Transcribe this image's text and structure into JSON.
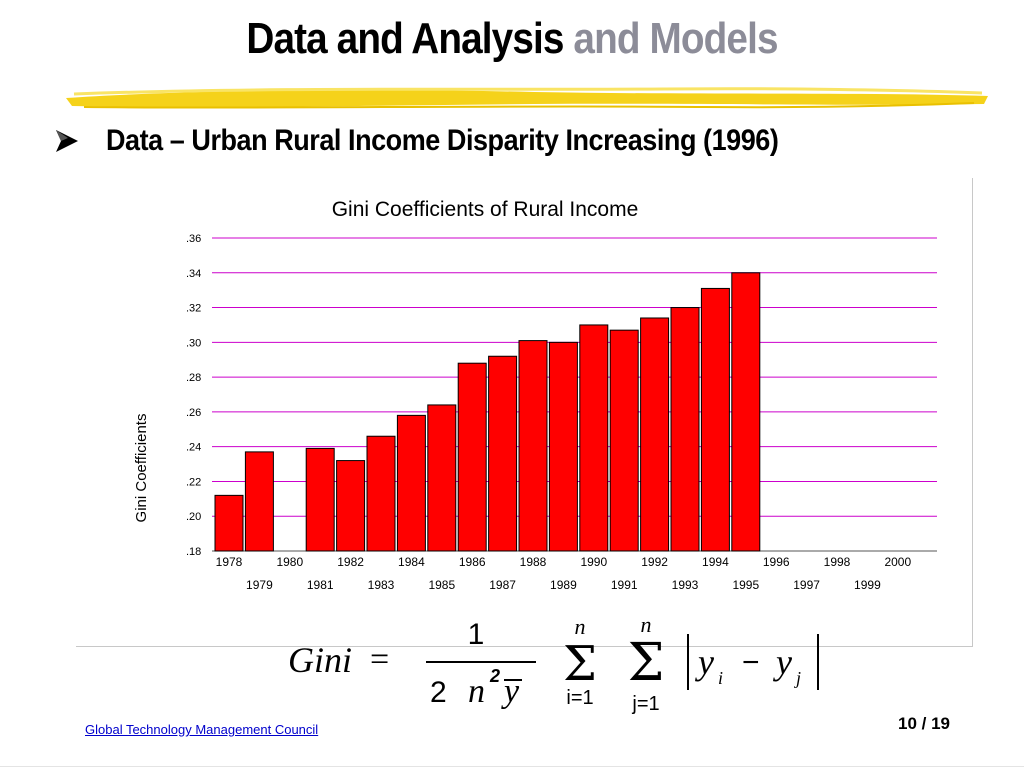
{
  "slide": {
    "title_main": "Data and Analysis",
    "title_accent": "and Models",
    "bullet_text": "Data – Urban Rural Income Disparity Increasing (1996)",
    "bullet_icon": "arrowhead-bullet-icon",
    "footer_link": "Global Technology Management Council",
    "page_number": "10 / 19"
  },
  "colors": {
    "title_main": "#000000",
    "title_accent": "#8c8c98",
    "highlight_stroke": "#f5d21a",
    "bar_fill": "#ff0000",
    "bar_stroke": "#000000",
    "gridline": "#cc00cc",
    "link": "#0000cc"
  },
  "chart_data": {
    "type": "bar",
    "title": "Gini Coefficients of Rural Income",
    "xlabel": "",
    "ylabel": "Gini Coefficients",
    "ylim": [
      0.18,
      0.36
    ],
    "yticks": [
      ".36",
      ".34",
      ".32",
      ".30",
      ".28",
      ".26",
      ".24",
      ".22",
      ".20",
      ".18"
    ],
    "ytick_values": [
      0.36,
      0.34,
      0.32,
      0.3,
      0.28,
      0.26,
      0.24,
      0.22,
      0.2,
      0.18
    ],
    "grid": true,
    "categories": [
      "1978",
      "1979",
      "1980",
      "1981",
      "1982",
      "1983",
      "1984",
      "1985",
      "1986",
      "1987",
      "1988",
      "1989",
      "1990",
      "1991",
      "1992",
      "1993",
      "1994",
      "1995",
      "1996",
      "1997",
      "1998",
      "1999",
      "2000"
    ],
    "values": [
      0.212,
      0.237,
      null,
      0.239,
      0.232,
      0.246,
      0.258,
      0.264,
      0.288,
      0.292,
      0.301,
      0.3,
      0.31,
      0.307,
      0.314,
      0.32,
      0.331,
      0.34,
      null,
      null,
      null,
      null,
      null
    ]
  },
  "formula": {
    "lhs": "Gini",
    "equals": "=",
    "numerator": "1",
    "denominator_const": "2",
    "denominator_n": "n",
    "denominator_exp": "2",
    "denominator_ybar": "y",
    "sum1_upper": "n",
    "sum1_lower": "i=1",
    "sum2_upper": "n",
    "sum2_lower": "j=1",
    "term_y": "y",
    "sub_i": "i",
    "minus": "−",
    "sub_j": "j"
  }
}
